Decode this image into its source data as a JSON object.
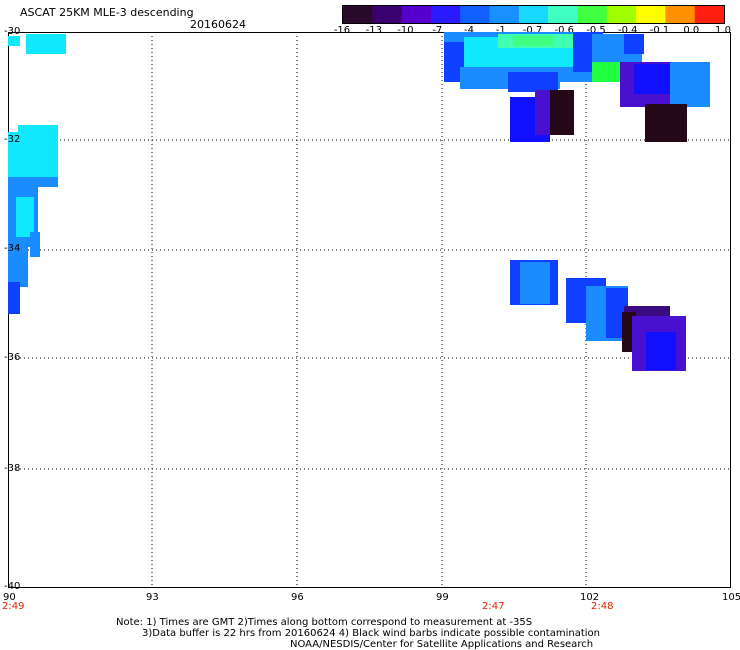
{
  "header": {
    "title": "ASCAT 25KM MLE-3 descending",
    "date": "20160624"
  },
  "colorbar": {
    "labels": [
      "-16",
      "-13",
      "-10",
      "-7",
      "-4",
      "-1",
      "-0.7",
      "-0.6",
      "-0.5",
      "-0.4",
      "-0.1",
      "0.0",
      "1.0"
    ],
    "colors": [
      "#2a0a2a",
      "#3a0070",
      "#5500cc",
      "#2a1aff",
      "#1060ff",
      "#1890ff",
      "#18d8ff",
      "#40ffc0",
      "#40ff40",
      "#a0ff00",
      "#ffff00",
      "#ff9000",
      "#ff2010"
    ]
  },
  "axes": {
    "lat_labels": [
      "-30",
      "-32",
      "-34",
      "-36",
      "-38",
      "-40"
    ],
    "lon_labels": [
      "90",
      "93",
      "96",
      "99",
      "102",
      "105"
    ],
    "time_labels": [
      {
        "lon": "90",
        "time": "2:49"
      },
      {
        "lon": "99",
        "time": "2:47"
      },
      {
        "lon": "102",
        "time": "2:48"
      }
    ]
  },
  "notes": {
    "line1": "Note: 1) Times are GMT 2)Times along bottom correspond to measurement at -35S",
    "line2": "3)Data buffer is 22 hrs from 20160624 4) Black wind barbs indicate possible contamination",
    "line3": "NOAA/NESDIS/Center for Satellite Applications and Research"
  },
  "swath_colors": {
    "cyan": "#10e8ff",
    "light_blue": "#1a8cff",
    "blue": "#1040ff",
    "deep_blue": "#1010ff",
    "violet": "#4a10d0",
    "purple": "#3a0a80",
    "dark": "#240818",
    "green": "#20ff40",
    "mint": "#40ffb0",
    "teal": "#30e0d0"
  }
}
